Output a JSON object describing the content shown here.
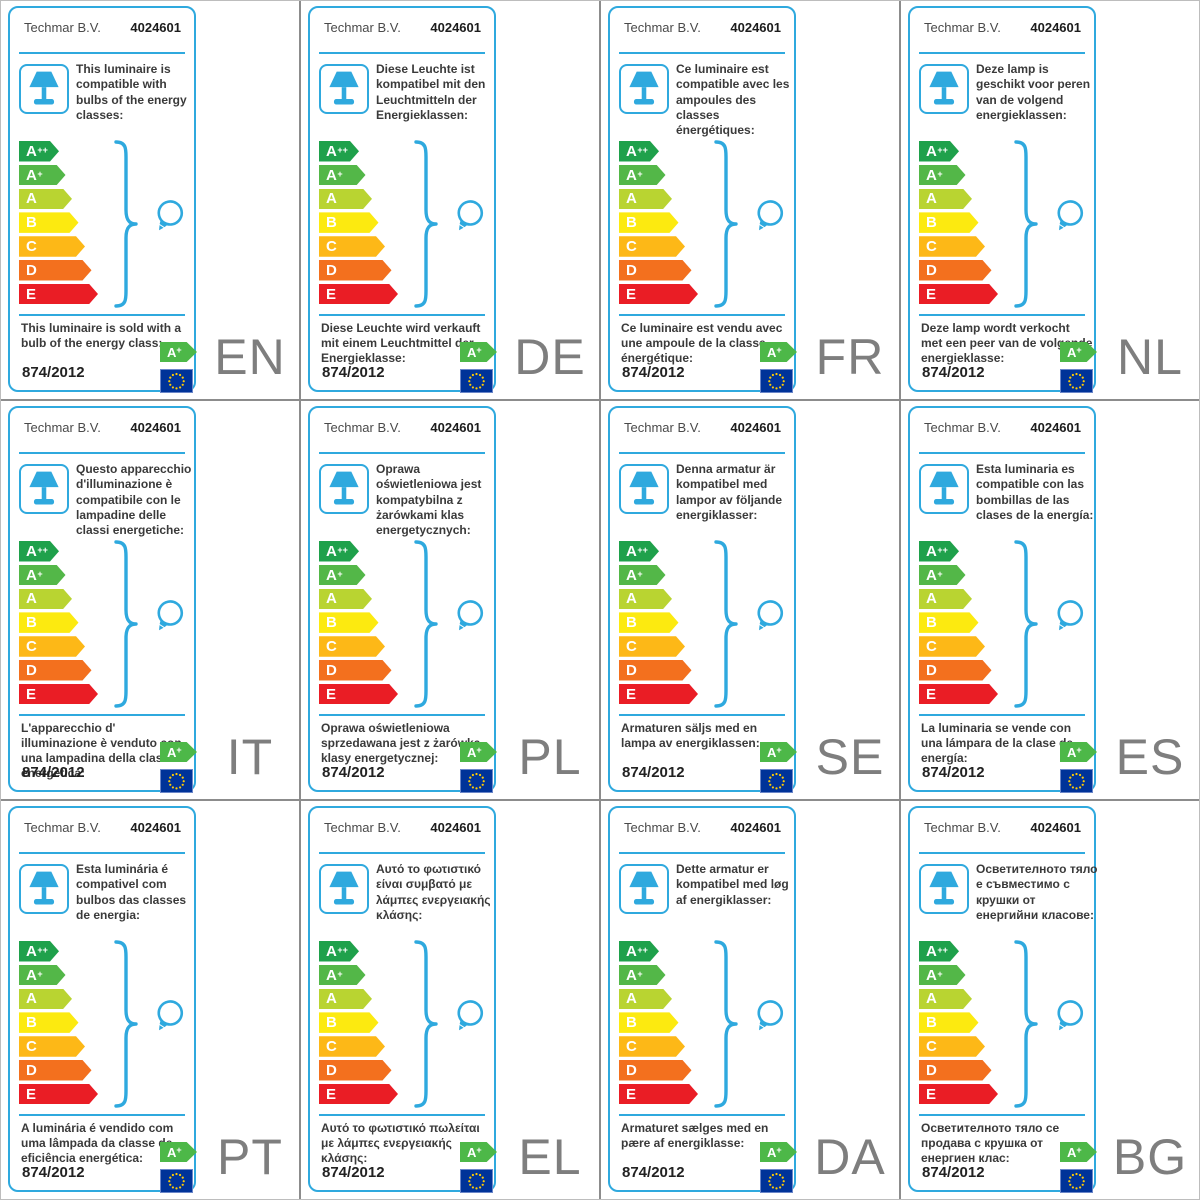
{
  "shared": {
    "company": "Techmar B.V.",
    "model": "4024601",
    "regulation": "874/2012",
    "badge": {
      "label": "A",
      "sup": "+"
    },
    "energy_classes": [
      {
        "label": "A",
        "sup": "++",
        "color": "#1fa14b"
      },
      {
        "label": "A",
        "sup": "+",
        "color": "#53b748"
      },
      {
        "label": "A",
        "sup": "",
        "color": "#b9d431"
      },
      {
        "label": "B",
        "sup": "",
        "color": "#fcea10"
      },
      {
        "label": "C",
        "sup": "",
        "color": "#fdb817"
      },
      {
        "label": "D",
        "sup": "",
        "color": "#f3701e"
      },
      {
        "label": "E",
        "sup": "",
        "color": "#ea1d25"
      }
    ],
    "colors": {
      "accent_cyan": "#2fa9de",
      "badge_green": "#4db848",
      "eu_flag_blue": "#003399",
      "star_yellow": "#ffcc00",
      "language_gray": "#7e7e7e",
      "text_dark": "#3a3a3a",
      "grid_line_gray": "#8c8c8c"
    }
  },
  "cards": [
    {
      "code": "EN",
      "top_text": "This luminaire is compatible with bulbs of the energy classes:",
      "bottom_text": "This luminaire is sold with a bulb of the energy class:"
    },
    {
      "code": "DE",
      "top_text": "Diese Leuchte ist kompatibel mit den Leuchtmitteln der Energieklassen:",
      "bottom_text": "Diese Leuchte wird verkauft mit einem Leuchtmittel der Energieklasse:"
    },
    {
      "code": "FR",
      "top_text": "Ce luminaire est compatible avec les ampoules des classes énergétiques:",
      "bottom_text": "Ce luminaire est vendu avec une ampoule de la classe énergétique:"
    },
    {
      "code": "NL",
      "top_text": "Deze lamp is geschikt voor peren van de volgend energieklassen:",
      "bottom_text": "Deze lamp wordt verkocht met een peer van de volgende energieklasse:"
    },
    {
      "code": "IT",
      "top_text": "Questo apparecchio d'illuminazione è compatibile con le lampadine delle classi energetiche:",
      "bottom_text": "L'apparecchio d' illuminazione è venduto con una lampadina della classe energetica:"
    },
    {
      "code": "PL",
      "top_text": "Oprawa oświetleniowa jest kompatybilna z żarówkami klas energetycznych:",
      "bottom_text": "Oprawa oświetleniowa sprzedawana jest z żarówką klasy energetycznej:"
    },
    {
      "code": "SE",
      "top_text": "Denna armatur är kompatibel med lampor av följande energiklasser:",
      "bottom_text": "Armaturen säljs med en lampa av energiklassen:"
    },
    {
      "code": "ES",
      "top_text": "Esta luminaria es compatible con las bombillas de las clases de la energía:",
      "bottom_text": "La luminaria se vende con una lámpara de la clase de energía:"
    },
    {
      "code": "PT",
      "top_text": "Esta luminária é compativel com bulbos das classes de energia:",
      "bottom_text": "A luminária é vendido com uma lâmpada da classe de eficiência energética:"
    },
    {
      "code": "EL",
      "top_text": "Αυτό το φωτιστικό είναι συμβατό με λάμπες ενεργειακής κλάσης:",
      "bottom_text": "Αυτό το φωτιστικό πωλείται με λάμπες ενεργειακής κλάσης:"
    },
    {
      "code": "DA",
      "top_text": "Dette armatur er kompatibel med løg af energiklasser:",
      "bottom_text": "Armaturet sælges med en pære af energiklasse:"
    },
    {
      "code": "BG",
      "top_text": "Осветителното тяло е съвместимо с крушки от енергийни класове:",
      "bottom_text": "Осветителното тяло се продава с крушка от енергиен клас:"
    }
  ]
}
